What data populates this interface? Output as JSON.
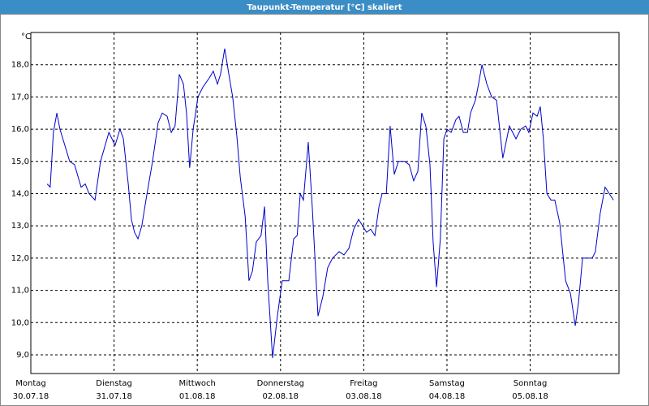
{
  "chart_data": {
    "type": "line",
    "title": "Taupunkt-Temperatur [°C] skaliert",
    "y_unit": "°C",
    "xlim": [
      0,
      169.6
    ],
    "ylim": [
      8.42,
      19.0
    ],
    "grid": true,
    "xticks": [
      {
        "value": 0,
        "label": "Montag"
      },
      {
        "value": 24,
        "label": "Dienstag"
      },
      {
        "value": 48,
        "label": "Mittwoch"
      },
      {
        "value": 72,
        "label": "Donnerstag"
      },
      {
        "value": 96,
        "label": "Freitag"
      },
      {
        "value": 120,
        "label": "Samstag"
      },
      {
        "value": 144,
        "label": "Sonntag"
      }
    ],
    "xtick_dates": [
      "30.07.18",
      "31.07.18",
      "01.08.18",
      "02.08.18",
      "03.08.18",
      "04.08.18",
      "05.08.18"
    ],
    "yticks": [
      {
        "value": 9,
        "label": "9,0"
      },
      {
        "value": 10,
        "label": "10,0"
      },
      {
        "value": 11,
        "label": "11,0"
      },
      {
        "value": 12,
        "label": "12,0"
      },
      {
        "value": 13,
        "label": "13,0"
      },
      {
        "value": 14,
        "label": "14,0"
      },
      {
        "value": 15,
        "label": "15,0"
      },
      {
        "value": 16,
        "label": "16,0"
      },
      {
        "value": 17,
        "label": "17,0"
      },
      {
        "value": 18,
        "label": "18,0"
      }
    ],
    "series": [
      {
        "color": "#0000cc",
        "x": [
          4.7,
          5.6,
          6.5,
          7.5,
          8.4,
          9.8,
          11.2,
          12.6,
          14.5,
          15.7,
          16.8,
          18.5,
          20.1,
          22.5,
          24.3,
          25.7,
          26.7,
          28.1,
          29.0,
          29.9,
          30.9,
          32.0,
          33.2,
          35.1,
          36.7,
          37.9,
          39.3,
          40.5,
          41.6,
          42.8,
          44.0,
          44.9,
          45.8,
          46.8,
          48.2,
          49.6,
          51.5,
          52.6,
          53.8,
          54.7,
          55.9,
          57.1,
          58.2,
          59.4,
          60.4,
          61.8,
          62.9,
          63.9,
          65.0,
          66.4,
          67.4,
          68.3,
          69.7,
          71.1,
          72.5,
          74.4,
          75.8,
          76.8,
          77.7,
          78.6,
          80.0,
          81.2,
          82.8,
          84.2,
          85.6,
          87.0,
          88.9,
          90.3,
          91.7,
          93.1,
          94.5,
          95.7,
          96.8,
          98.0,
          99.2,
          100.4,
          101.3,
          102.5,
          103.6,
          104.8,
          106.0,
          107.8,
          109.1,
          110.4,
          111.6,
          112.7,
          113.9,
          115.1,
          116.0,
          117.0,
          118.1,
          119.1,
          120.0,
          121.2,
          122.6,
          123.5,
          124.7,
          125.9,
          126.8,
          128.2,
          129.1,
          130.1,
          131.5,
          132.9,
          134.3,
          136.1,
          138.0,
          139.9,
          141.3,
          142.7,
          143.6,
          144.8,
          146.0,
          146.9,
          147.8,
          148.8,
          150.0,
          151.1,
          152.5,
          154.2,
          155.6,
          157.0,
          157.9,
          159.1,
          160.5,
          161.9,
          162.8,
          164.2,
          165.6,
          166.8,
          168.0
        ],
        "values": [
          14.3,
          14.2,
          15.9,
          16.5,
          16.0,
          15.5,
          15.0,
          14.9,
          14.2,
          14.3,
          14.0,
          13.8,
          15.0,
          15.9,
          15.5,
          16.0,
          15.7,
          14.3,
          13.2,
          12.8,
          12.6,
          13.0,
          13.8,
          15.0,
          16.2,
          16.5,
          16.4,
          15.9,
          16.1,
          17.7,
          17.4,
          16.5,
          14.8,
          16.0,
          17.0,
          17.3,
          17.6,
          17.8,
          17.4,
          17.7,
          18.5,
          17.7,
          17.0,
          15.8,
          14.5,
          13.3,
          11.3,
          11.6,
          12.5,
          12.7,
          13.6,
          11.3,
          8.9,
          10.2,
          11.3,
          11.3,
          12.6,
          12.7,
          14.0,
          13.8,
          15.6,
          13.5,
          10.2,
          10.8,
          11.7,
          12.0,
          12.2,
          12.1,
          12.3,
          12.9,
          13.2,
          13.0,
          12.8,
          12.9,
          12.7,
          13.6,
          14.0,
          14.0,
          16.1,
          14.6,
          15.0,
          15.0,
          14.9,
          14.4,
          14.7,
          16.5,
          16.1,
          14.9,
          12.5,
          11.1,
          12.6,
          15.7,
          16.0,
          15.9,
          16.3,
          16.4,
          15.9,
          15.9,
          16.5,
          16.9,
          17.4,
          18.0,
          17.4,
          17.0,
          16.9,
          15.1,
          16.1,
          15.7,
          16.0,
          16.1,
          15.9,
          16.5,
          16.4,
          16.7,
          15.7,
          14.0,
          13.8,
          13.8,
          13.1,
          11.3,
          10.9,
          9.9,
          10.6,
          12.0,
          12.0,
          12.0,
          12.2,
          13.4,
          14.2,
          14.0,
          13.8
        ]
      }
    ]
  }
}
